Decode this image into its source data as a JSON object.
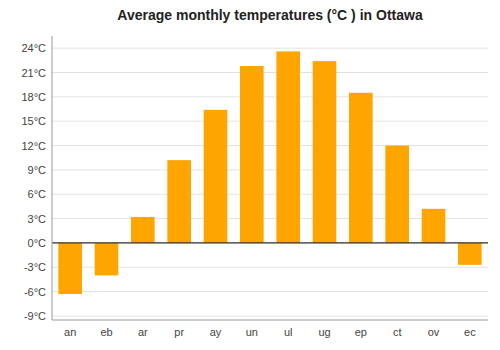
{
  "chart_data": {
    "type": "bar",
    "title": "Average monthly temperatures (°C ) in Ottawa",
    "categories": [
      "an",
      "eb",
      "ar",
      "pr",
      "ay",
      "un",
      "ul",
      "ug",
      "ep",
      "ct",
      "ov",
      "ec"
    ],
    "values": [
      -6.3,
      -4.0,
      3.2,
      10.2,
      16.4,
      21.8,
      23.6,
      22.4,
      18.5,
      12.0,
      4.2,
      -2.7
    ],
    "color": "#FFA500",
    "ylim": [
      -9.5,
      25.5
    ],
    "yticks": [
      {
        "value": -9,
        "label": "-9°C"
      },
      {
        "value": -6,
        "label": "-6°C"
      },
      {
        "value": -3,
        "label": "-3°C"
      },
      {
        "value": 0,
        "label": "0°C"
      },
      {
        "value": 3,
        "label": "3°C"
      },
      {
        "value": 6,
        "label": "6°C"
      },
      {
        "value": 9,
        "label": "9°C"
      },
      {
        "value": 12,
        "label": "12°C"
      },
      {
        "value": 15,
        "label": "15°C"
      },
      {
        "value": 18,
        "label": "18°C"
      },
      {
        "value": 21,
        "label": "21°C"
      },
      {
        "value": 24,
        "label": "24°C"
      }
    ],
    "grid": true
  }
}
